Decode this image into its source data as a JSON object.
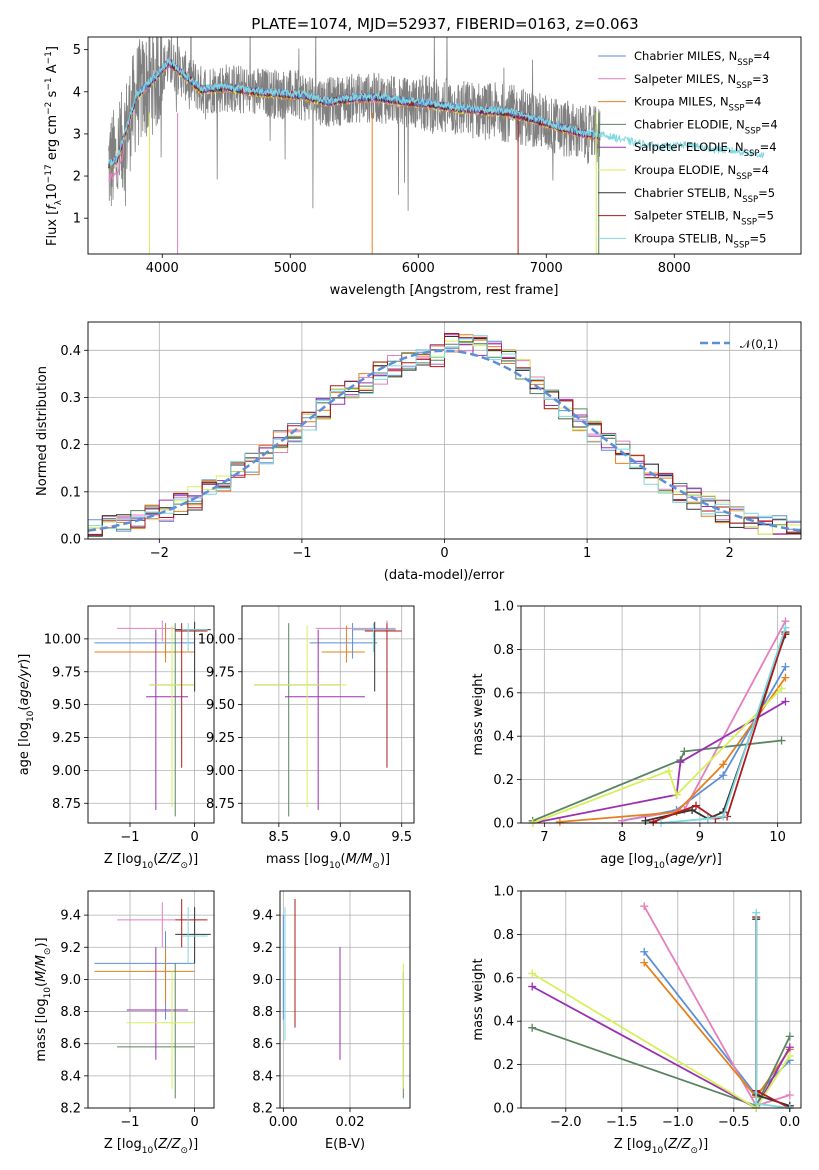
{
  "title": "PLATE=1074, MJD=52937, FIBERID=0163, z=0.063",
  "models": [
    {
      "name": "Chabrier MILES, N",
      "sub": "SSP",
      "val": "=4",
      "color": "#5b8fd9"
    },
    {
      "name": "Salpeter MILES, N",
      "sub": "SSP",
      "val": "=3",
      "color": "#e57fbd"
    },
    {
      "name": "Kroupa MILES, N",
      "sub": "SSP",
      "val": "=4",
      "color": "#e5801f"
    },
    {
      "name": "Chabrier ELODIE, N",
      "sub": "SSP",
      "val": "=4",
      "color": "#5a8560"
    },
    {
      "name": "Salpeter ELODIE, N",
      "sub": "SSP",
      "val": "=4",
      "color": "#9a30b0"
    },
    {
      "name": "Kroupa ELODIE, N",
      "sub": "SSP",
      "val": "=4",
      "color": "#d6f05a"
    },
    {
      "name": "Chabrier STELIB, N",
      "sub": "SSP",
      "val": "=5",
      "color": "#333333"
    },
    {
      "name": "Salpeter STELIB, N",
      "sub": "SSP",
      "val": "=5",
      "color": "#b01a1a"
    },
    {
      "name": "Kroupa STELIB, N",
      "sub": "SSP",
      "val": "=5",
      "color": "#7fd8e0"
    }
  ],
  "chart_data": [
    {
      "type": "line",
      "title": "PLATE=1074, MJD=52937, FIBERID=0163, z=0.063",
      "xlabel": "wavelength [Angstrom, rest frame]",
      "ylabel": "Flux [f_λ10^-17 erg cm^-2 s^-1 A^-1]",
      "xlim": [
        3420,
        8990
      ],
      "ylim": [
        0.15,
        5.3
      ],
      "xticks": [
        4000,
        5000,
        6000,
        7000,
        8000
      ],
      "yticks": [
        1,
        2,
        3,
        4,
        5
      ],
      "legend": "top-right",
      "continuum": {
        "x": [
          3580,
          3650,
          3800,
          3950,
          4050,
          4150,
          4300,
          4500,
          4700,
          4900,
          5100,
          5300,
          5500,
          5700,
          5900,
          6100,
          6300,
          6500,
          6700,
          6900,
          7100,
          7300,
          7500,
          7700,
          7900,
          8100,
          8300,
          8500,
          8700
        ],
        "y": [
          2.25,
          2.4,
          3.9,
          4.35,
          4.7,
          4.45,
          4.05,
          4.1,
          4.0,
          3.95,
          3.9,
          3.75,
          3.85,
          3.85,
          3.75,
          3.7,
          3.6,
          3.55,
          3.5,
          3.35,
          3.15,
          3.0,
          2.9,
          2.75,
          2.65,
          2.7,
          2.6,
          2.55,
          2.45
        ]
      }
    },
    {
      "type": "bar",
      "xlabel": "(data-model)/error",
      "ylabel": "Normed distribution",
      "xlim": [
        -2.5,
        2.5
      ],
      "ylim": [
        0,
        0.46
      ],
      "xticks": [
        -2,
        -1,
        0,
        1,
        2
      ],
      "yticks": [
        0.0,
        0.1,
        0.2,
        0.3,
        0.4
      ],
      "bin_width": 0.1,
      "reference_label": "𝒩(0,1)",
      "reference": "normal pdf, mean 0, sd 1",
      "grid": true
    },
    {
      "type": "scatter",
      "xlabel_main": "Z [log",
      "xlabel_sub": "10",
      "xlabel_tail": "(Z/Z☉)]",
      "ylabel": "age  [log10(age/yr)]",
      "xlim": [
        -1.65,
        0.3
      ],
      "ylim": [
        8.6,
        10.25
      ],
      "xticks": [
        -1,
        0
      ],
      "yticks": [
        8.75,
        9.0,
        9.25,
        9.5,
        9.75,
        10.0
      ],
      "points": [
        {
          "m": 0,
          "x": -0.45,
          "xe": [
            -1.55,
            0.0
          ],
          "y": 9.97,
          "ye": [
            9.85,
            10.12
          ]
        },
        {
          "m": 1,
          "x": -0.5,
          "xe": [
            -1.2,
            -0.3
          ],
          "y": 10.08,
          "ye": [
            9.98,
            10.14
          ]
        },
        {
          "m": 2,
          "x": -0.45,
          "xe": [
            -1.55,
            0.0
          ],
          "y": 9.9,
          "ye": [
            9.82,
            10.1
          ]
        },
        {
          "m": 3,
          "x": -0.3,
          "xe": [
            -0.7,
            0.0
          ],
          "y": 9.65,
          "ye": [
            8.65,
            10.12
          ]
        },
        {
          "m": 4,
          "x": -0.6,
          "xe": [
            -0.75,
            -0.1
          ],
          "y": 9.56,
          "ye": [
            8.7,
            10.07
          ]
        },
        {
          "m": 5,
          "x": -0.35,
          "xe": [
            -0.7,
            -0.0
          ],
          "y": 9.65,
          "ye": [
            8.72,
            10.1
          ]
        },
        {
          "m": 6,
          "x": 0.0,
          "xe": [
            -0.3,
            0.25
          ],
          "y": 10.07,
          "ye": [
            9.6,
            10.13
          ]
        },
        {
          "m": 7,
          "x": -0.2,
          "xe": [
            -0.3,
            0.2
          ],
          "y": 10.06,
          "ye": [
            9.02,
            10.12
          ]
        },
        {
          "m": 8,
          "x": -0.1,
          "xe": [
            -0.2,
            0.2
          ],
          "y": 10.07,
          "ye": [
            9.9,
            10.12
          ]
        }
      ]
    },
    {
      "type": "scatter",
      "xlabel": "mass [log10(M/M☉)]",
      "xlim": [
        8.2,
        9.6
      ],
      "ylim": [
        8.6,
        10.25
      ],
      "xticks": [
        8.5,
        9.0,
        9.5
      ],
      "yticks": [
        8.75,
        9.0,
        9.25,
        9.5,
        9.75,
        10.0
      ],
      "points": [
        {
          "m": 0,
          "x": 9.1,
          "xe": [
            8.75,
            9.3
          ],
          "y": 9.97,
          "ye": [
            9.85,
            10.12
          ]
        },
        {
          "m": 1,
          "x": 9.38,
          "xe": [
            8.8,
            9.45
          ],
          "y": 10.08,
          "ye": [
            9.98,
            10.14
          ]
        },
        {
          "m": 2,
          "x": 9.05,
          "xe": [
            8.85,
            9.2
          ],
          "y": 9.9,
          "ye": [
            9.82,
            10.1
          ]
        },
        {
          "m": 3,
          "x": 8.58,
          "xe": [
            8.3,
            9.0
          ],
          "y": 9.65,
          "ye": [
            8.65,
            10.12
          ]
        },
        {
          "m": 4,
          "x": 8.82,
          "xe": [
            8.55,
            9.2
          ],
          "y": 9.56,
          "ye": [
            8.7,
            10.07
          ]
        },
        {
          "m": 5,
          "x": 8.73,
          "xe": [
            8.3,
            9.05
          ],
          "y": 9.65,
          "ye": [
            8.72,
            10.1
          ]
        },
        {
          "m": 6,
          "x": 9.28,
          "xe": [
            9.1,
            9.45
          ],
          "y": 10.07,
          "ye": [
            9.6,
            10.13
          ]
        },
        {
          "m": 7,
          "x": 9.38,
          "xe": [
            9.2,
            9.5
          ],
          "y": 10.06,
          "ye": [
            9.02,
            10.12
          ]
        },
        {
          "m": 8,
          "x": 9.27,
          "xe": [
            9.1,
            9.45
          ],
          "y": 10.07,
          "ye": [
            9.9,
            10.12
          ]
        }
      ]
    },
    {
      "type": "line",
      "xlabel": "age  [log10(age/yr)]",
      "ylabel": "mass weight",
      "xlim": [
        6.7,
        10.3
      ],
      "ylim": [
        0,
        1.0
      ],
      "xticks": [
        7,
        8,
        9,
        10
      ],
      "yticks": [
        0.0,
        0.2,
        0.4,
        0.6,
        0.8,
        1.0
      ],
      "series": [
        {
          "m": 0,
          "x": [
            8.0,
            8.7,
            9.3,
            10.1
          ],
          "y": [
            0.01,
            0.06,
            0.22,
            0.72
          ]
        },
        {
          "m": 1,
          "x": [
            8.0,
            8.8,
            10.1
          ],
          "y": [
            0.01,
            0.06,
            0.93
          ]
        },
        {
          "m": 2,
          "x": [
            7.2,
            8.7,
            9.3,
            10.1
          ],
          "y": [
            0.005,
            0.05,
            0.27,
            0.67
          ]
        },
        {
          "m": 3,
          "x": [
            6.85,
            8.75,
            8.8,
            10.05
          ],
          "y": [
            0.01,
            0.29,
            0.33,
            0.38
          ]
        },
        {
          "m": 4,
          "x": [
            6.85,
            8.7,
            8.75,
            10.1
          ],
          "y": [
            0.0,
            0.13,
            0.28,
            0.56
          ]
        },
        {
          "m": 5,
          "x": [
            6.85,
            8.6,
            8.7,
            10.05
          ],
          "y": [
            0.0,
            0.24,
            0.13,
            0.62
          ]
        },
        {
          "m": 6,
          "x": [
            8.3,
            8.9,
            9.1,
            9.3,
            10.1
          ],
          "y": [
            0.01,
            0.06,
            0.02,
            0.05,
            0.87
          ]
        },
        {
          "m": 7,
          "x": [
            8.4,
            8.95,
            9.2,
            9.35,
            10.1
          ],
          "y": [
            0.005,
            0.08,
            0.02,
            0.03,
            0.88
          ]
        },
        {
          "m": 8,
          "x": [
            8.5,
            9.1,
            9.3,
            10.1
          ],
          "y": [
            0.0,
            0.02,
            0.03,
            0.9
          ]
        }
      ]
    },
    {
      "type": "scatter",
      "xlabel": "Z [log10(Z/Z☉)]",
      "ylabel": "mass [log10(M/M☉)]",
      "xlim": [
        -1.65,
        0.3
      ],
      "ylim": [
        8.2,
        9.55
      ],
      "xticks": [
        -1,
        0
      ],
      "yticks": [
        8.2,
        8.4,
        8.6,
        8.8,
        9.0,
        9.2,
        9.4
      ],
      "points": [
        {
          "m": 0,
          "x": -0.45,
          "xe": [
            -1.55,
            0.0
          ],
          "y": 9.1,
          "ye": [
            8.75,
            9.3
          ]
        },
        {
          "m": 1,
          "x": -0.5,
          "xe": [
            -1.2,
            -0.3
          ],
          "y": 9.37,
          "ye": [
            9.2,
            9.48
          ]
        },
        {
          "m": 2,
          "x": -0.45,
          "xe": [
            -1.55,
            0.0
          ],
          "y": 9.05,
          "ye": [
            8.85,
            9.2
          ]
        },
        {
          "m": 3,
          "x": -0.3,
          "xe": [
            -1.2,
            0.0
          ],
          "y": 8.58,
          "ye": [
            8.26,
            9.1
          ]
        },
        {
          "m": 4,
          "x": -0.6,
          "xe": [
            -1.05,
            -0.1
          ],
          "y": 8.81,
          "ye": [
            8.5,
            9.2
          ]
        },
        {
          "m": 5,
          "x": -0.35,
          "xe": [
            -1.05,
            0.0
          ],
          "y": 8.73,
          "ye": [
            8.32,
            9.05
          ]
        },
        {
          "m": 6,
          "x": 0.0,
          "xe": [
            -0.3,
            0.25
          ],
          "y": 9.28,
          "ye": [
            9.1,
            9.45
          ]
        },
        {
          "m": 7,
          "x": -0.2,
          "xe": [
            -0.3,
            0.2
          ],
          "y": 9.37,
          "ye": [
            9.2,
            9.5
          ]
        },
        {
          "m": 8,
          "x": -0.1,
          "xe": [
            -0.2,
            0.2
          ],
          "y": 9.27,
          "ye": [
            9.1,
            9.45
          ]
        }
      ]
    },
    {
      "type": "scatter",
      "xlabel": "E(B-V)",
      "xlim": [
        -0.001,
        0.038
      ],
      "ylim": [
        8.2,
        9.55
      ],
      "xticks": [
        0.0,
        0.02
      ],
      "yticks": [
        8.2,
        8.4,
        8.6,
        8.8,
        9.0,
        9.2,
        9.4
      ],
      "points": [
        {
          "m": 0,
          "x": 0.0,
          "ye": [
            8.75,
            9.4
          ]
        },
        {
          "m": 3,
          "x": 0.036,
          "ye": [
            8.26,
            9.05
          ]
        },
        {
          "m": 4,
          "x": 0.017,
          "ye": [
            8.5,
            9.2
          ]
        },
        {
          "m": 5,
          "x": 0.036,
          "ye": [
            8.32,
            9.1
          ]
        },
        {
          "m": 7,
          "x": 0.0035,
          "ye": [
            8.7,
            9.5
          ]
        },
        {
          "m": 8,
          "x": 0.0005,
          "ye": [
            8.62,
            9.45
          ]
        }
      ]
    },
    {
      "type": "line",
      "xlabel": "Z [log10(Z/Z☉)]",
      "ylabel": "mass weight",
      "xlim": [
        -2.4,
        0.1
      ],
      "ylim": [
        0,
        1.0
      ],
      "xticks": [
        -2.0,
        -1.5,
        -1.0,
        -0.5,
        0.0
      ],
      "yticks": [
        0.0,
        0.2,
        0.4,
        0.6,
        0.8,
        1.0
      ],
      "series": [
        {
          "m": 0,
          "x": [
            -1.3,
            -0.3,
            0.0
          ],
          "y": [
            0.72,
            0.06,
            0.22
          ]
        },
        {
          "m": 1,
          "x": [
            -1.3,
            -0.3,
            0.0
          ],
          "y": [
            0.93,
            0.01,
            0.06
          ]
        },
        {
          "m": 2,
          "x": [
            -1.3,
            -0.3,
            0.0
          ],
          "y": [
            0.67,
            0.05,
            0.27
          ]
        },
        {
          "m": 3,
          "x": [
            -2.3,
            -0.3,
            0.0
          ],
          "y": [
            0.37,
            0.01,
            0.33
          ]
        },
        {
          "m": 4,
          "x": [
            -2.3,
            -0.3,
            0.0
          ],
          "y": [
            0.56,
            0.0,
            0.28
          ]
        },
        {
          "m": 5,
          "x": [
            -2.3,
            -0.3,
            0.0
          ],
          "y": [
            0.62,
            0.0,
            0.24
          ]
        },
        {
          "m": 6,
          "x": [
            -0.3,
            -0.3,
            0.0
          ],
          "y": [
            0.87,
            0.06,
            0.01
          ]
        },
        {
          "m": 7,
          "x": [
            -0.3,
            -0.3,
            0.0
          ],
          "y": [
            0.88,
            0.08,
            0.0
          ]
        },
        {
          "m": 8,
          "x": [
            -0.3,
            -0.3,
            0.0
          ],
          "y": [
            0.9,
            0.02,
            0.0
          ]
        }
      ]
    }
  ]
}
